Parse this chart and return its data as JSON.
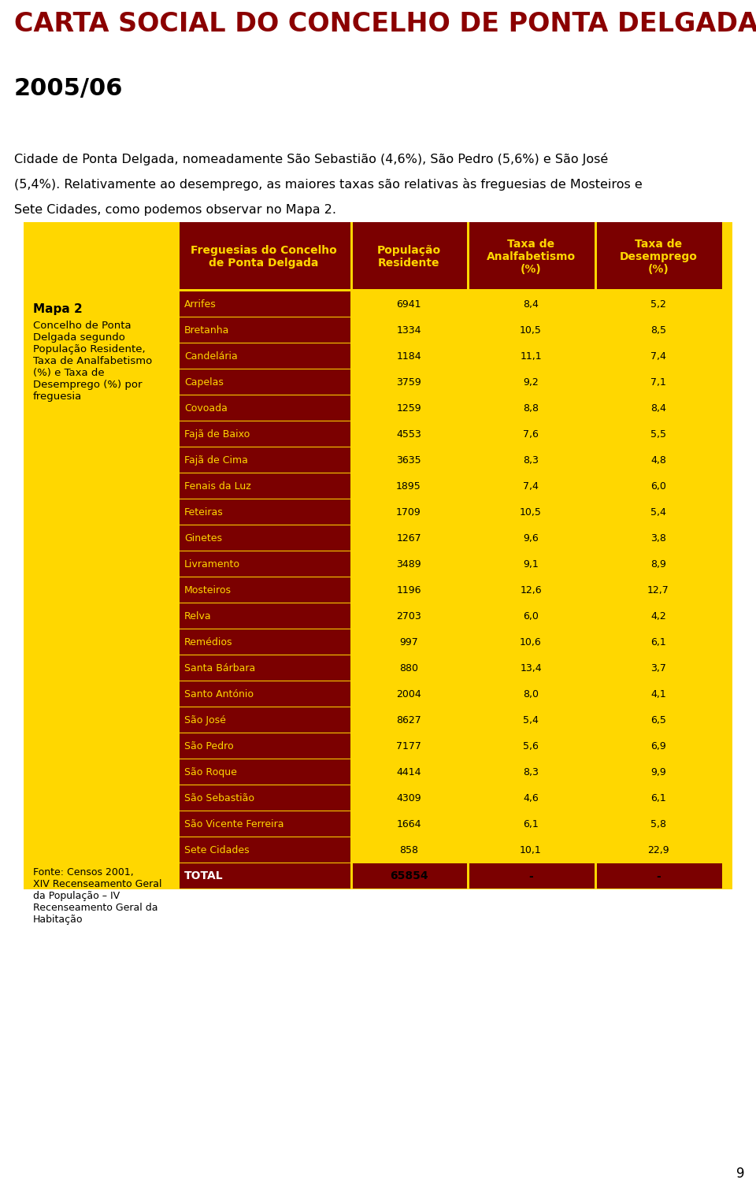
{
  "title": "CARTA SOCIAL DO CONCELHO DE PONTA DELGADA",
  "title_color": "#8B0000",
  "year_label": "2005/06",
  "body_text_1": "Cidade de Ponta Delgada, nomeadamente São Sebastião (4,6%), São Pedro (5,6%) e São José\n(5,4%). Relativamente ao desemprego, as maiores taxas são relativas às freguesias de Mosteiros e\nSete Cidades, como podemos observar no Mapa 2.",
  "table_bg_color": "#FFD700",
  "header_bg_color": "#7B0000",
  "header_text_color": "#FFD700",
  "row_dark_color": "#7B0000",
  "row_text_yellow": "#FFD700",
  "row_text_black": "#000000",
  "col_headers": [
    "Freguesias do Concelho\nde Ponta Delgada",
    "População\nResidente",
    "Taxa de\nAnalfabetismo\n(%)",
    "Taxa de\nDesemprego\n(%)"
  ],
  "rows": [
    [
      "Arrifes",
      "6941",
      "8,4",
      "5,2"
    ],
    [
      "Bretanha",
      "1334",
      "10,5",
      "8,5"
    ],
    [
      "Candelária",
      "1184",
      "11,1",
      "7,4"
    ],
    [
      "Capelas",
      "3759",
      "9,2",
      "7,1"
    ],
    [
      "Covoada",
      "1259",
      "8,8",
      "8,4"
    ],
    [
      "Fajã de Baixo",
      "4553",
      "7,6",
      "5,5"
    ],
    [
      "Fajã de Cima",
      "3635",
      "8,3",
      "4,8"
    ],
    [
      "Fenais da Luz",
      "1895",
      "7,4",
      "6,0"
    ],
    [
      "Feteiras",
      "1709",
      "10,5",
      "5,4"
    ],
    [
      "Ginetes",
      "1267",
      "9,6",
      "3,8"
    ],
    [
      "Livramento",
      "3489",
      "9,1",
      "8,9"
    ],
    [
      "Mosteiros",
      "1196",
      "12,6",
      "12,7"
    ],
    [
      "Relva",
      "2703",
      "6,0",
      "4,2"
    ],
    [
      "Remédios",
      "997",
      "10,6",
      "6,1"
    ],
    [
      "Santa Bárbara",
      "880",
      "13,4",
      "3,7"
    ],
    [
      "Santo António",
      "2004",
      "8,0",
      "4,1"
    ],
    [
      "São José",
      "8627",
      "5,4",
      "6,5"
    ],
    [
      "São Pedro",
      "7177",
      "5,6",
      "6,9"
    ],
    [
      "São Roque",
      "4414",
      "8,3",
      "9,9"
    ],
    [
      "São Sebastião",
      "4309",
      "4,6",
      "6,1"
    ],
    [
      "São Vicente Ferreira",
      "1664",
      "6,1",
      "5,8"
    ],
    [
      "Sete Cidades",
      "858",
      "10,1",
      "22,9"
    ]
  ],
  "total_row": [
    "TOTAL",
    "65854",
    "-",
    "-"
  ],
  "page_number": "9",
  "background_color": "#FFFFFF"
}
